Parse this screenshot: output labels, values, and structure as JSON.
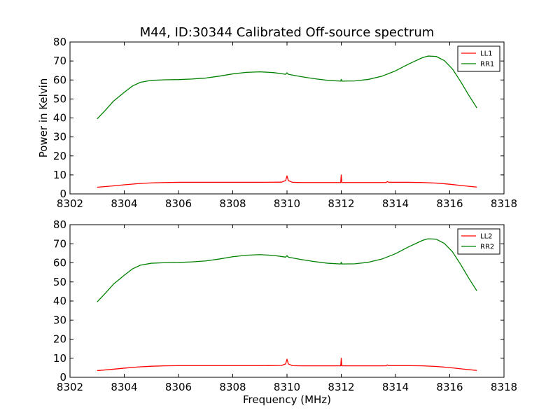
{
  "figure": {
    "title": "M44, ID:30344 Calibrated Off-source spectrum",
    "background": "#ffffff"
  },
  "chart_data": [
    {
      "type": "line",
      "title": "M44, ID:30344 Calibrated Off-source spectrum",
      "xlabel": "",
      "ylabel": "Power in Kelvin",
      "xlim": [
        8302,
        8318
      ],
      "ylim": [
        0,
        80
      ],
      "xticks": [
        8302,
        8304,
        8306,
        8308,
        8310,
        8312,
        8314,
        8316,
        8318
      ],
      "yticks": [
        0,
        10,
        20,
        30,
        40,
        50,
        60,
        70,
        80
      ],
      "legend_position": "top-right",
      "series": [
        {
          "name": "LL1",
          "color": "#ff0000",
          "x": [
            8303.0,
            8303.5,
            8304.0,
            8304.5,
            8305.0,
            8305.5,
            8306.0,
            8307.0,
            8308.0,
            8309.0,
            8309.8,
            8309.95,
            8310.0,
            8310.05,
            8310.2,
            8310.5,
            8311.0,
            8311.5,
            8311.98,
            8312.0,
            8312.02,
            8312.5,
            8313.0,
            8313.65,
            8313.7,
            8313.75,
            8314.0,
            8314.5,
            8315.0,
            8315.5,
            8316.0,
            8316.5,
            8317.0
          ],
          "y": [
            3.5,
            4.1,
            4.8,
            5.4,
            5.8,
            6.0,
            6.1,
            6.1,
            6.1,
            6.1,
            6.2,
            7.0,
            9.5,
            7.0,
            6.1,
            6.0,
            6.0,
            6.0,
            6.0,
            10.0,
            6.0,
            6.0,
            6.0,
            6.0,
            6.5,
            6.1,
            6.1,
            6.1,
            6.0,
            5.7,
            5.1,
            4.3,
            3.6
          ]
        },
        {
          "name": "RR1",
          "color": "#008000",
          "x": [
            8303.0,
            8303.3,
            8303.6,
            8304.0,
            8304.3,
            8304.6,
            8305.0,
            8305.5,
            8306.0,
            8306.5,
            8307.0,
            8307.5,
            8308.0,
            8308.5,
            8309.0,
            8309.5,
            8309.95,
            8310.0,
            8310.05,
            8310.5,
            8311.0,
            8311.5,
            8311.98,
            8312.0,
            8312.02,
            8312.5,
            8313.0,
            8313.5,
            8314.0,
            8314.5,
            8315.0,
            8315.2,
            8315.5,
            8315.8,
            8316.1,
            8316.4,
            8316.7,
            8317.0
          ],
          "y": [
            39.5,
            44.0,
            48.8,
            53.5,
            56.8,
            58.8,
            59.8,
            60.1,
            60.2,
            60.5,
            61.0,
            62.0,
            63.2,
            64.0,
            64.3,
            63.9,
            63.0,
            63.8,
            63.0,
            61.8,
            60.7,
            59.8,
            59.4,
            60.3,
            59.4,
            59.5,
            60.3,
            62.0,
            64.8,
            68.5,
            71.8,
            72.6,
            72.4,
            70.2,
            65.8,
            59.2,
            52.0,
            45.3
          ]
        }
      ]
    },
    {
      "type": "line",
      "title": "",
      "xlabel": "Frequency (MHz)",
      "ylabel": "",
      "xlim": [
        8302,
        8318
      ],
      "ylim": [
        0,
        80
      ],
      "xticks": [
        8302,
        8304,
        8306,
        8308,
        8310,
        8312,
        8314,
        8316,
        8318
      ],
      "yticks": [
        0,
        10,
        20,
        30,
        40,
        50,
        60,
        70,
        80
      ],
      "legend_position": "top-right",
      "series": [
        {
          "name": "LL2",
          "color": "#ff0000",
          "x": [
            8303.0,
            8303.5,
            8304.0,
            8304.5,
            8305.0,
            8305.5,
            8306.0,
            8307.0,
            8308.0,
            8309.0,
            8309.8,
            8309.95,
            8310.0,
            8310.05,
            8310.2,
            8310.5,
            8311.0,
            8311.5,
            8311.98,
            8312.0,
            8312.02,
            8312.5,
            8313.0,
            8313.65,
            8313.7,
            8313.75,
            8314.0,
            8314.5,
            8315.0,
            8315.5,
            8316.0,
            8316.5,
            8317.0
          ],
          "y": [
            3.5,
            4.1,
            4.8,
            5.4,
            5.8,
            6.0,
            6.1,
            6.1,
            6.1,
            6.1,
            6.2,
            7.0,
            9.5,
            7.0,
            6.1,
            6.0,
            6.0,
            6.0,
            6.0,
            10.0,
            6.0,
            6.0,
            6.0,
            6.0,
            6.5,
            6.1,
            6.1,
            6.1,
            6.0,
            5.7,
            5.1,
            4.3,
            3.6
          ]
        },
        {
          "name": "RR2",
          "color": "#008000",
          "x": [
            8303.0,
            8303.3,
            8303.6,
            8304.0,
            8304.3,
            8304.6,
            8305.0,
            8305.5,
            8306.0,
            8306.5,
            8307.0,
            8307.5,
            8308.0,
            8308.5,
            8309.0,
            8309.5,
            8309.95,
            8310.0,
            8310.05,
            8310.5,
            8311.0,
            8311.5,
            8311.98,
            8312.0,
            8312.02,
            8312.5,
            8313.0,
            8313.5,
            8314.0,
            8314.5,
            8315.0,
            8315.2,
            8315.5,
            8315.8,
            8316.1,
            8316.4,
            8316.7,
            8317.0
          ],
          "y": [
            39.5,
            44.0,
            48.8,
            53.5,
            56.8,
            58.8,
            59.8,
            60.1,
            60.2,
            60.5,
            61.0,
            62.0,
            63.2,
            64.0,
            64.3,
            63.9,
            63.0,
            63.8,
            63.0,
            61.8,
            60.7,
            59.8,
            59.4,
            60.3,
            59.4,
            59.5,
            60.3,
            62.0,
            64.8,
            68.5,
            71.8,
            72.6,
            72.4,
            70.2,
            65.8,
            59.2,
            52.0,
            45.3
          ]
        }
      ]
    }
  ]
}
